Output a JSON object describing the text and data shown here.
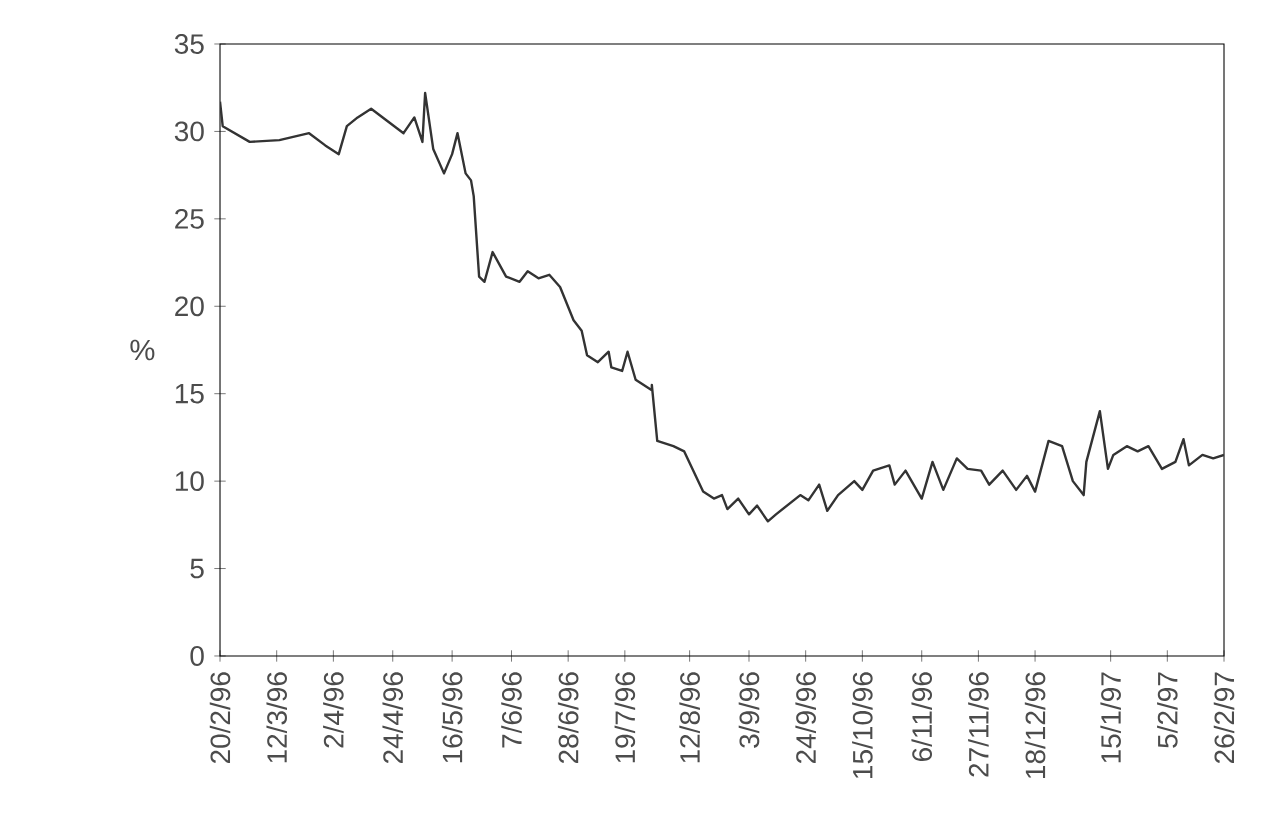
{
  "chart_data": {
    "type": "line",
    "ylabel": "%",
    "xlim": [
      "1996-02-20",
      "1997-02-26"
    ],
    "ylim": [
      0,
      35
    ],
    "yticks": [
      0,
      5,
      10,
      15,
      20,
      25,
      30,
      35
    ],
    "xticks": [
      {
        "value": "1996-02-20",
        "label": "20/2/96"
      },
      {
        "value": "1996-03-12",
        "label": "12/3/96"
      },
      {
        "value": "1996-04-02",
        "label": "2/4/96"
      },
      {
        "value": "1996-04-24",
        "label": "24/4/96"
      },
      {
        "value": "1996-05-16",
        "label": "16/5/96"
      },
      {
        "value": "1996-06-07",
        "label": "7/6/96"
      },
      {
        "value": "1996-06-28",
        "label": "28/6/96"
      },
      {
        "value": "1996-07-19",
        "label": "19/7/96"
      },
      {
        "value": "1996-08-12",
        "label": "12/8/96"
      },
      {
        "value": "1996-09-03",
        "label": "3/9/96"
      },
      {
        "value": "1996-09-24",
        "label": "24/9/96"
      },
      {
        "value": "1996-10-15",
        "label": "15/10/96"
      },
      {
        "value": "1996-11-06",
        "label": "6/11/96"
      },
      {
        "value": "1996-11-27",
        "label": "27/11/96"
      },
      {
        "value": "1996-12-18",
        "label": "18/12/96"
      },
      {
        "value": "1997-01-15",
        "label": "15/1/97"
      },
      {
        "value": "1997-02-05",
        "label": "5/2/97"
      },
      {
        "value": "1997-02-26",
        "label": "26/2/97"
      }
    ],
    "grid": false,
    "series": [
      {
        "color": "#333333",
        "x": [
          "1996-02-20",
          "1996-02-21",
          "1996-03-02",
          "1996-03-13",
          "1996-03-24",
          "1996-03-30",
          "1996-04-04",
          "1996-04-07",
          "1996-04-11",
          "1996-04-16",
          "1996-04-22",
          "1996-04-28",
          "1996-05-02",
          "1996-05-05",
          "1996-05-06",
          "1996-05-09",
          "1996-05-13",
          "1996-05-16",
          "1996-05-18",
          "1996-05-21",
          "1996-05-23",
          "1996-05-24",
          "1996-05-26",
          "1996-05-28",
          "1996-05-31",
          "1996-06-05",
          "1996-06-10",
          "1996-06-13",
          "1996-06-17",
          "1996-06-21",
          "1996-06-25",
          "1996-06-30",
          "1996-07-03",
          "1996-07-05",
          "1996-07-09",
          "1996-07-13",
          "1996-07-14",
          "1996-07-18",
          "1996-07-20",
          "1996-07-23",
          "1996-07-29",
          "1996-07-29",
          "1996-07-31",
          "1996-08-06",
          "1996-08-10",
          "1996-08-17",
          "1996-08-21",
          "1996-08-24",
          "1996-08-26",
          "1996-08-30",
          "1996-09-03",
          "1996-09-06",
          "1996-09-10",
          "1996-09-13",
          "1996-09-22",
          "1996-09-25",
          "1996-09-29",
          "1996-10-02",
          "1996-10-06",
          "1996-10-12",
          "1996-10-15",
          "1996-10-19",
          "1996-10-25",
          "1996-10-27",
          "1996-10-31",
          "1996-11-06",
          "1996-11-10",
          "1996-11-14",
          "1996-11-19",
          "1996-11-23",
          "1996-11-28",
          "1996-12-01",
          "1996-12-06",
          "1996-12-11",
          "1996-12-15",
          "1996-12-18",
          "1996-12-23",
          "1996-12-28",
          "1997-01-01",
          "1997-01-05",
          "1997-01-06",
          "1997-01-11",
          "1997-01-14",
          "1997-01-16",
          "1997-01-21",
          "1997-01-25",
          "1997-01-29",
          "1997-02-03",
          "1997-02-08",
          "1997-02-11",
          "1997-02-13",
          "1997-02-18",
          "1997-02-22",
          "1997-02-26"
        ],
        "values": [
          31.7,
          30.3,
          29.4,
          29.5,
          29.9,
          29.2,
          28.7,
          30.3,
          30.8,
          31.3,
          30.6,
          29.9,
          30.8,
          29.4,
          32.2,
          29,
          27.6,
          28.7,
          29.9,
          27.6,
          27.2,
          26.3,
          21.7,
          21.4,
          23.1,
          21.7,
          21.4,
          22,
          21.6,
          21.8,
          21.1,
          19.2,
          18.6,
          17.2,
          16.8,
          17.4,
          16.5,
          16.3,
          17.4,
          15.8,
          15.2,
          15.5,
          12.3,
          12,
          11.7,
          9.4,
          9,
          9.2,
          8.4,
          9,
          8.1,
          8.6,
          7.7,
          8.1,
          9.2,
          8.9,
          9.8,
          8.3,
          9.2,
          10,
          9.5,
          10.6,
          10.9,
          9.8,
          10.6,
          9,
          11.1,
          9.5,
          11.3,
          10.7,
          10.6,
          9.8,
          10.6,
          9.5,
          10.3,
          9.4,
          12.3,
          12,
          10,
          9.2,
          11.1,
          14,
          10.7,
          11.5,
          12,
          11.7,
          12,
          10.7,
          11.1,
          12.4,
          10.9,
          11.5,
          11.3,
          11.5
        ]
      }
    ]
  }
}
